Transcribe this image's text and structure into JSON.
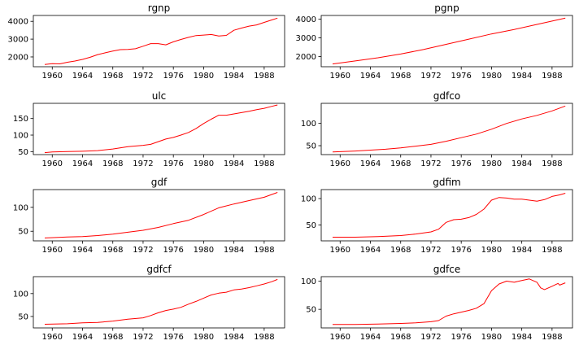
{
  "chart_data": [
    {
      "type": "line",
      "title": "rgnp",
      "xlim": [
        1957.5,
        1990.7
      ],
      "ylim": [
        1450,
        4330
      ],
      "xticks": [
        1960,
        1964,
        1968,
        1972,
        1976,
        1980,
        1984,
        1988
      ],
      "xtick_labels": [
        "1960",
        "1964",
        "1968",
        "1972",
        "1976",
        "1980",
        "1984",
        "1988"
      ],
      "yticks": [
        2000,
        3000,
        4000
      ],
      "ytick_labels": [
        "2000",
        "3000",
        "4000"
      ],
      "series": [
        {
          "color": "#ff0000",
          "x": [
            1959.0,
            1960.0,
            1961.0,
            1962.0,
            1963.0,
            1964.0,
            1965.0,
            1966.0,
            1967.0,
            1968.0,
            1969.0,
            1970.0,
            1971.0,
            1972.0,
            1973.0,
            1974.0,
            1975.0,
            1976.0,
            1977.0,
            1978.0,
            1979.0,
            1980.0,
            1981.0,
            1982.0,
            1983.0,
            1984.0,
            1985.0,
            1986.0,
            1987.0,
            1988.0,
            1989.0,
            1989.75
          ],
          "y": [
            1580,
            1620,
            1610,
            1700,
            1770,
            1860,
            1980,
            2130,
            2230,
            2330,
            2410,
            2420,
            2460,
            2600,
            2750,
            2750,
            2680,
            2850,
            2980,
            3100,
            3200,
            3230,
            3260,
            3180,
            3210,
            3500,
            3620,
            3730,
            3800,
            3940,
            4080,
            4180
          ]
        }
      ]
    },
    {
      "type": "line",
      "title": "pgnp",
      "xlim": [
        1957.5,
        1990.7
      ],
      "ylim": [
        1450,
        4200
      ],
      "xticks": [
        1960,
        1964,
        1968,
        1972,
        1976,
        1980,
        1984,
        1988
      ],
      "xtick_labels": [
        "1960",
        "1964",
        "1968",
        "1972",
        "1976",
        "1980",
        "1984",
        "1988"
      ],
      "yticks": [
        2000,
        3000,
        4000
      ],
      "ytick_labels": [
        "2000",
        "3000",
        "4000"
      ],
      "series": [
        {
          "color": "#ff0000",
          "x": [
            1959.0,
            1962.0,
            1965.0,
            1968.0,
            1971.0,
            1974.0,
            1977.0,
            1980.0,
            1983.0,
            1986.0,
            1989.75
          ],
          "y": [
            1600,
            1760,
            1930,
            2130,
            2370,
            2650,
            2930,
            3210,
            3450,
            3720,
            4060
          ]
        }
      ]
    },
    {
      "type": "line",
      "title": "ulc",
      "xlim": [
        1957.5,
        1990.7
      ],
      "ylim": [
        41,
        196
      ],
      "xticks": [
        1960,
        1964,
        1968,
        1972,
        1976,
        1980,
        1984,
        1988
      ],
      "xtick_labels": [
        "1960",
        "1964",
        "1968",
        "1972",
        "1976",
        "1980",
        "1984",
        "1988"
      ],
      "yticks": [
        50,
        100,
        150
      ],
      "ytick_labels": [
        "50",
        "100",
        "150"
      ],
      "series": [
        {
          "color": "#ff0000",
          "x": [
            1959.0,
            1960.0,
            1962.0,
            1964.0,
            1966.0,
            1968.0,
            1970.0,
            1972.0,
            1973.0,
            1974.0,
            1975.0,
            1976.0,
            1977.0,
            1978.0,
            1979.0,
            1980.0,
            1981.0,
            1982.0,
            1983.0,
            1984.0,
            1985.0,
            1986.0,
            1987.0,
            1988.0,
            1989.0,
            1989.75
          ],
          "y": [
            47,
            49,
            50,
            51,
            53,
            58,
            65,
            69,
            72,
            80,
            88,
            93,
            100,
            108,
            120,
            135,
            148,
            160,
            160,
            164,
            168,
            172,
            177,
            181,
            187,
            191
          ]
        }
      ]
    },
    {
      "type": "line",
      "title": "gdfco",
      "xlim": [
        1957.5,
        1990.7
      ],
      "ylim": [
        30,
        145
      ],
      "xticks": [
        1960,
        1964,
        1968,
        1972,
        1976,
        1980,
        1984,
        1988
      ],
      "xtick_labels": [
        "1960",
        "1964",
        "1968",
        "1972",
        "1976",
        "1980",
        "1984",
        "1988"
      ],
      "yticks": [
        50,
        100
      ],
      "ytick_labels": [
        "50",
        "100"
      ],
      "series": [
        {
          "color": "#ff0000",
          "x": [
            1959.0,
            1962.0,
            1964.0,
            1966.0,
            1968.0,
            1970.0,
            1972.0,
            1974.0,
            1976.0,
            1978.0,
            1980.0,
            1982.0,
            1984.0,
            1986.0,
            1988.0,
            1989.75
          ],
          "y": [
            36,
            38,
            40,
            42,
            45,
            49,
            53,
            60,
            68,
            76,
            87,
            100,
            110,
            118,
            128,
            139
          ]
        }
      ]
    },
    {
      "type": "line",
      "title": "gdf",
      "xlim": [
        1957.5,
        1990.7
      ],
      "ylim": [
        30,
        137
      ],
      "xticks": [
        1960,
        1964,
        1968,
        1972,
        1976,
        1980,
        1984,
        1988
      ],
      "xtick_labels": [
        "1960",
        "1964",
        "1968",
        "1972",
        "1976",
        "1980",
        "1984",
        "1988"
      ],
      "yticks": [
        50,
        100
      ],
      "ytick_labels": [
        "50",
        "100"
      ],
      "series": [
        {
          "color": "#ff0000",
          "x": [
            1959.0,
            1962.0,
            1964.0,
            1966.0,
            1968.0,
            1970.0,
            1972.0,
            1974.0,
            1976.0,
            1978.0,
            1980.0,
            1982.0,
            1984.0,
            1986.0,
            1988.0,
            1989.75
          ],
          "y": [
            36,
            38,
            39,
            41,
            44,
            48,
            52,
            58,
            66,
            73,
            85,
            99,
            107,
            114,
            121,
            131
          ]
        }
      ]
    },
    {
      "type": "line",
      "title": "gdfim",
      "xlim": [
        1957.5,
        1990.7
      ],
      "ylim": [
        20,
        117
      ],
      "xticks": [
        1960,
        1964,
        1968,
        1972,
        1976,
        1980,
        1984,
        1988
      ],
      "xtick_labels": [
        "1960",
        "1964",
        "1968",
        "1972",
        "1976",
        "1980",
        "1984",
        "1988"
      ],
      "yticks": [
        50,
        100
      ],
      "ytick_labels": [
        "50",
        "100"
      ],
      "series": [
        {
          "color": "#ff0000",
          "x": [
            1959.0,
            1962.0,
            1965.0,
            1968.0,
            1970.0,
            1972.0,
            1973.0,
            1974.0,
            1975.0,
            1976.0,
            1977.0,
            1978.0,
            1979.0,
            1980.0,
            1981.0,
            1982.0,
            1983.0,
            1984.0,
            1985.0,
            1986.0,
            1987.0,
            1988.0,
            1989.0,
            1989.75
          ],
          "y": [
            27,
            27,
            28,
            30,
            33,
            37,
            42,
            55,
            60,
            61,
            64,
            70,
            80,
            97,
            102,
            101,
            99,
            99,
            97,
            95,
            98,
            104,
            107,
            110
          ]
        }
      ]
    },
    {
      "type": "line",
      "title": "gdfcf",
      "xlim": [
        1957.5,
        1990.7
      ],
      "ylim": [
        25,
        137
      ],
      "xticks": [
        1960,
        1964,
        1968,
        1972,
        1976,
        1980,
        1984,
        1988
      ],
      "xtick_labels": [
        "1960",
        "1964",
        "1968",
        "1972",
        "1976",
        "1980",
        "1984",
        "1988"
      ],
      "yticks": [
        50,
        100
      ],
      "ytick_labels": [
        "50",
        "100"
      ],
      "series": [
        {
          "color": "#ff0000",
          "x": [
            1959.0,
            1962.0,
            1964.0,
            1966.0,
            1968.0,
            1970.0,
            1972.0,
            1973.0,
            1974.0,
            1975.0,
            1976.0,
            1977.0,
            1978.0,
            1979.0,
            1980.0,
            1981.0,
            1982.0,
            1983.0,
            1984.0,
            1985.0,
            1986.0,
            1987.0,
            1988.0,
            1989.0,
            1989.75
          ],
          "y": [
            33,
            34,
            36,
            37,
            40,
            44,
            47,
            52,
            58,
            63,
            66,
            70,
            77,
            83,
            90,
            97,
            101,
            103,
            108,
            110,
            113,
            117,
            121,
            126,
            131
          ]
        }
      ]
    },
    {
      "type": "line",
      "title": "gdfce",
      "xlim": [
        1957.5,
        1990.7
      ],
      "ylim": [
        17,
        108
      ],
      "xticks": [
        1960,
        1964,
        1968,
        1972,
        1976,
        1980,
        1984,
        1988
      ],
      "xtick_labels": [
        "1960",
        "1964",
        "1968",
        "1972",
        "1976",
        "1980",
        "1984",
        "1988"
      ],
      "yticks": [
        50,
        100
      ],
      "ytick_labels": [
        "50",
        "100"
      ],
      "series": [
        {
          "color": "#ff0000",
          "x": [
            1959.0,
            1962.0,
            1965.0,
            1968.0,
            1970.0,
            1972.0,
            1973.0,
            1974.0,
            1975.0,
            1976.0,
            1977.0,
            1978.0,
            1979.0,
            1980.0,
            1981.0,
            1982.0,
            1983.0,
            1984.0,
            1985.0,
            1986.0,
            1986.5,
            1987.0,
            1988.0,
            1988.8,
            1989.0,
            1989.75
          ],
          "y": [
            23,
            23,
            24,
            25,
            26,
            28,
            30,
            38,
            42,
            45,
            48,
            52,
            60,
            83,
            95,
            100,
            98,
            101,
            104,
            98,
            88,
            85,
            91,
            96,
            93,
            97
          ]
        }
      ]
    }
  ]
}
